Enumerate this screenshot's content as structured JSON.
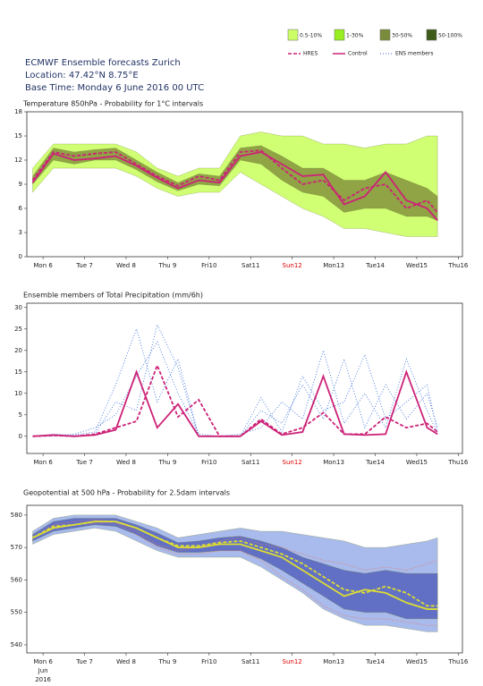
{
  "header": {
    "title": "ECMWF Ensemble forecasts Zurich",
    "location": "Location:  47.42°N 8.75°E",
    "base_time": "Base Time: Monday  6 June 2016 00 UTC"
  },
  "legend": {
    "boxes": [
      {
        "name": "0.5-10%",
        "color": "#ccff66"
      },
      {
        "name": "1-30%",
        "color": "#99ee22"
      },
      {
        "name": "30-50%",
        "color": "#7a8c3c"
      },
      {
        "name": "50-100%",
        "color": "#3d5c1a"
      }
    ],
    "lines": [
      {
        "name": "HRES",
        "color": "#cc2277",
        "dash": "4,2"
      },
      {
        "name": "Control",
        "color": "#cc2277",
        "dash": ""
      },
      {
        "name": "ENS members",
        "color": "#8899dd",
        "dash": "1,2"
      }
    ]
  },
  "chart_data": [
    {
      "type": "line",
      "title": "Temperature 850hPa - Probability for 1°C intervals",
      "x": [
        -0.25,
        0.25,
        0.75,
        1.25,
        1.75,
        2.25,
        2.75,
        3.25,
        3.75,
        4.25,
        4.75,
        5.25,
        5.75,
        6.25,
        6.75,
        7.25,
        7.75,
        8.25,
        8.75,
        9.25,
        9.5
      ],
      "xlim": [
        -0.39,
        10.1
      ],
      "xticks": [
        {
          "value": 0,
          "label": "Mon 6"
        },
        {
          "value": 1,
          "label": "Tue 7"
        },
        {
          "value": 2,
          "label": "Wed 8"
        },
        {
          "value": 3,
          "label": "Thu 9"
        },
        {
          "value": 4,
          "label": "Fri10"
        },
        {
          "value": 5,
          "label": "Sat11"
        },
        {
          "value": 6,
          "label": "Sun12"
        },
        {
          "value": 7,
          "label": "Mon13"
        },
        {
          "value": 8,
          "label": "Tue14"
        },
        {
          "value": 9,
          "label": "Wed15"
        },
        {
          "value": 10,
          "label": "Thu16"
        }
      ],
      "xtick_highlight": {
        "index": 6,
        "color": "#dd0000"
      },
      "ylim": [
        0,
        18
      ],
      "yticks": [
        0,
        3,
        6,
        9,
        12,
        15,
        18
      ],
      "bands": [
        {
          "color": "#ccff66",
          "low": [
            8,
            11,
            11,
            11,
            11,
            10,
            8.5,
            7.5,
            8,
            8,
            10.5,
            9,
            7.5,
            6,
            5,
            3.5,
            3.5,
            3,
            2.5,
            2.5,
            2.5
          ],
          "high": [
            11,
            14,
            14,
            14,
            14,
            13,
            11,
            10,
            11,
            11,
            15,
            15.5,
            15,
            15,
            14,
            14,
            13.5,
            14,
            14,
            15,
            15
          ]
        },
        {
          "color": "#8a9a40",
          "low": [
            9,
            12,
            11.5,
            12,
            12,
            10.8,
            9.3,
            8.2,
            9,
            8.8,
            12,
            11.5,
            9.5,
            8,
            7.5,
            5.5,
            6,
            6,
            5,
            5,
            4.5
          ],
          "high": [
            10,
            13.5,
            13,
            13.3,
            13.5,
            12,
            10.5,
            9.2,
            10.3,
            10,
            13.5,
            13.8,
            12.5,
            11,
            11,
            9.5,
            9.5,
            10.5,
            9.5,
            8.5,
            7.5
          ]
        }
      ],
      "series": [
        {
          "color": "#cc2277",
          "dash": "4,2",
          "values": [
            9.5,
            13,
            12.5,
            12.8,
            13,
            11.5,
            10,
            8.8,
            10,
            9.5,
            13,
            13.2,
            11,
            9,
            9.5,
            7,
            8.5,
            9,
            6,
            7,
            5.5
          ]
        },
        {
          "color": "#cc2277",
          "dash": "",
          "values": [
            9.2,
            12.8,
            12,
            12.2,
            12.5,
            11.3,
            9.8,
            8.5,
            9.5,
            9.2,
            12.5,
            13,
            11.5,
            10,
            10.2,
            6.5,
            7.5,
            10.5,
            7,
            6,
            4.5
          ]
        }
      ]
    },
    {
      "type": "line",
      "title": "Ensemble members of Total Precipitation (mm/6h)",
      "x": [
        -0.25,
        0.25,
        0.75,
        1.25,
        1.75,
        2.25,
        2.75,
        3.25,
        3.75,
        4.25,
        4.75,
        5.25,
        5.75,
        6.25,
        6.75,
        7.25,
        7.75,
        8.25,
        8.75,
        9.25,
        9.5
      ],
      "xlim": [
        -0.39,
        10.1
      ],
      "xticks": [
        {
          "value": 0,
          "label": "Mon 6"
        },
        {
          "value": 1,
          "label": "Tue 7"
        },
        {
          "value": 2,
          "label": "Wed 8"
        },
        {
          "value": 3,
          "label": "Thu 9"
        },
        {
          "value": 4,
          "label": "Fri10"
        },
        {
          "value": 5,
          "label": "Sat11"
        },
        {
          "value": 6,
          "label": "Sun12"
        },
        {
          "value": 7,
          "label": "Mon13"
        },
        {
          "value": 8,
          "label": "Tue14"
        },
        {
          "value": 9,
          "label": "Wed15"
        },
        {
          "value": 10,
          "label": "Thu16"
        }
      ],
      "xtick_highlight": {
        "index": 6,
        "color": "#dd0000"
      },
      "ylim": [
        -4,
        31
      ],
      "yticks": [
        0,
        5,
        10,
        15,
        20,
        25,
        30
      ],
      "bands": [],
      "series": [
        {
          "color": "#4477dd",
          "dash": "1,2",
          "values": [
            0,
            0.5,
            0.3,
            1,
            12,
            25,
            8,
            18,
            0,
            0,
            0,
            6,
            3,
            12,
            4,
            18,
            2,
            12,
            4,
            10,
            2
          ]
        },
        {
          "color": "#4477dd",
          "dash": "1,2",
          "values": [
            0,
            0,
            0.5,
            2,
            5,
            14,
            22,
            10,
            0.5,
            0,
            0.5,
            2,
            8,
            4,
            20,
            3,
            10,
            2,
            18,
            6,
            0.5
          ]
        },
        {
          "color": "#4477dd",
          "dash": "1,2",
          "values": [
            0,
            0.3,
            0,
            0.5,
            8,
            6,
            26,
            16,
            0,
            0,
            0,
            9,
            1,
            14,
            6,
            8,
            19,
            4,
            8,
            12,
            1
          ]
        },
        {
          "color": "#cc2277",
          "dash": "4,2",
          "values": [
            0,
            0.2,
            0,
            0.5,
            2,
            3.5,
            16.5,
            4.5,
            8.5,
            0,
            0,
            4,
            0.5,
            2,
            5.5,
            0.5,
            0.5,
            4.5,
            2,
            3,
            1
          ]
        },
        {
          "color": "#cc2277",
          "dash": "",
          "values": [
            0,
            0.3,
            0,
            0.3,
            1.5,
            15,
            2,
            7.5,
            0,
            0,
            0,
            3.5,
            0.3,
            1,
            14,
            0.5,
            0.3,
            0.5,
            15,
            2,
            0.5
          ]
        }
      ]
    },
    {
      "type": "line",
      "title": "Geopotential at 500 hPa - Probability for 2.5dam intervals",
      "x": [
        -0.25,
        0.25,
        0.75,
        1.25,
        1.75,
        2.25,
        2.75,
        3.25,
        3.75,
        4.25,
        4.75,
        5.25,
        5.75,
        6.25,
        6.75,
        7.25,
        7.75,
        8.25,
        8.75,
        9.25,
        9.5
      ],
      "xlim": [
        -0.39,
        10.1
      ],
      "xticks": [
        {
          "value": 0,
          "label": "Mon 6"
        },
        {
          "value": 1,
          "label": "Tue 7"
        },
        {
          "value": 2,
          "label": "Wed 8"
        },
        {
          "value": 3,
          "label": "Thu 9"
        },
        {
          "value": 4,
          "label": "Fri10"
        },
        {
          "value": 5,
          "label": "Sat11"
        },
        {
          "value": 6,
          "label": "Sun12"
        },
        {
          "value": 7,
          "label": "Mon13"
        },
        {
          "value": 8,
          "label": "Tue14"
        },
        {
          "value": 9,
          "label": "Wed15"
        },
        {
          "value": 10,
          "label": "Thu16"
        }
      ],
      "xtick_highlight": {
        "index": 6,
        "color": "#dd0000"
      },
      "x_sublabels": [
        "Jun",
        "2016"
      ],
      "ylim": [
        537.5,
        583
      ],
      "yticks": [
        540,
        550,
        560,
        570,
        580
      ],
      "bands": [
        {
          "color": "#9fb4ea",
          "low": [
            571,
            574,
            575,
            576,
            575,
            572,
            569,
            567,
            567,
            567,
            567,
            564,
            560,
            556,
            551,
            548,
            546,
            546,
            545,
            544,
            544
          ],
          "high": [
            575,
            579,
            580,
            580,
            580,
            578,
            576,
            573,
            574,
            575,
            576,
            575,
            575,
            574,
            573,
            572,
            570,
            570,
            571,
            572,
            573
          ]
        },
        {
          "color": "#5a68c0",
          "low": [
            572,
            575,
            576,
            577,
            576.5,
            574,
            570.5,
            568.5,
            568.5,
            569,
            569,
            566.5,
            563,
            559,
            555,
            551,
            550,
            550,
            548,
            548,
            548
          ],
          "high": [
            574,
            578,
            579,
            579,
            579,
            577,
            574.5,
            571.5,
            572,
            573,
            573.5,
            572,
            570,
            567,
            565,
            563,
            562,
            563,
            562,
            562,
            562
          ]
        }
      ],
      "series": [
        {
          "color": "#ee7766",
          "dash": "1,2",
          "values": [
            573,
            577,
            578,
            578.5,
            578,
            575,
            571,
            569,
            570,
            572,
            573,
            571,
            570,
            568,
            566,
            565,
            563,
            564,
            563,
            565,
            566
          ]
        },
        {
          "color": "#ee7766",
          "dash": "1,2",
          "values": [
            573,
            576,
            577,
            577.5,
            577.5,
            574,
            570,
            568,
            568,
            569,
            569,
            566,
            561,
            557,
            552,
            549,
            548,
            548,
            547,
            546,
            546
          ]
        },
        {
          "color": "#dddd33",
          "dash": "4,2",
          "values": [
            573,
            576.5,
            577,
            578,
            578,
            576,
            573,
            570.5,
            570.5,
            571.5,
            572,
            570,
            568,
            565,
            561,
            557,
            556,
            558,
            556,
            552,
            552
          ]
        },
        {
          "color": "#dddd33",
          "dash": "",
          "values": [
            573,
            576,
            577,
            578,
            578,
            576,
            573,
            570,
            570,
            571,
            571,
            569,
            567,
            563,
            559,
            555,
            557,
            556,
            553,
            551,
            551
          ]
        }
      ]
    }
  ]
}
